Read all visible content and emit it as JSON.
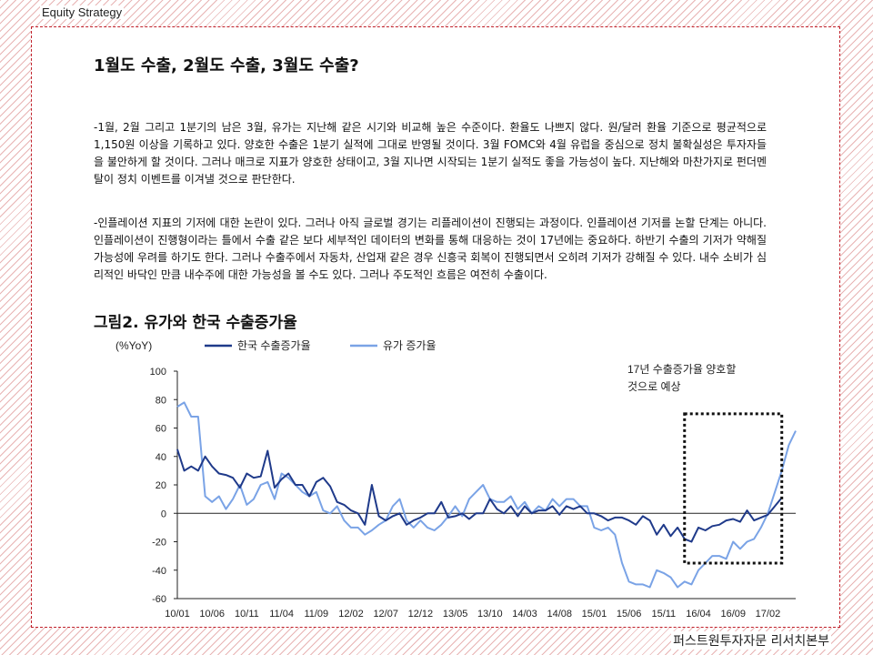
{
  "header": {
    "label": "Equity Strategy"
  },
  "footer": {
    "label": "퍼스트원투자자문 리서치본부"
  },
  "document": {
    "title": "1월도 수출, 2월도 수출, 3월도 수출?",
    "paragraphs": [
      "-1월, 2월 그리고 1분기의 남은 3월, 유가는 지난해 같은 시기와 비교해 높은 수준이다. 환율도 나쁘지 않다. 원/달러 환율 기준으로 평균적으로 1,150원 이상을 기록하고 있다. 양호한 수출은 1분기 실적에 그대로 반영될 것이다. 3월 FOMC와 4월 유럽을 중심으로 정치 불확실성은 투자자들을 불안하게 할 것이다. 그러나 매크로 지표가 양호한 상태이고, 3월 지나면 시작되는 1분기 실적도 좋을 가능성이 높다. 지난해와 마찬가지로 펀더멘탈이 정치 이벤트를 이겨낼 것으로 판단한다.",
      "-인플레이션 지표의 기저에 대한 논란이 있다. 그러나 아직 글로벌 경기는 리플레이션이 진행되는 과정이다. 인플레이션 기저를 논할 단계는 아니다. 인플레이션이 진행형이라는 틀에서 수출 같은 보다 세부적인 데이터의 변화를 통해 대응하는 것이 17년에는 중요하다. 하반기 수출의 기저가 약해질 가능성에 우려를 하기도 한다. 그러나 수출주에서 자동차, 산업재 같은 경우 신흥국 회복이 진행되면서 오히려 기저가 강해질 수 있다. 내수 소비가 심리적인 바닥인 만큼 내수주에 대한 가능성을 볼 수도 있다. 그러나 주도적인 흐름은 여전히 수출이다."
    ],
    "figure_title": "그림2. 유가와 한국 수출증가율"
  },
  "chart_data": {
    "type": "line",
    "ylabel": "(%YoY)",
    "ylim": [
      -60,
      100
    ],
    "yticks": [
      100,
      80,
      60,
      40,
      20,
      0,
      -20,
      -40,
      -60
    ],
    "xlabels": [
      "10/01",
      "10/06",
      "10/11",
      "11/04",
      "11/09",
      "12/02",
      "12/07",
      "12/12",
      "13/05",
      "13/10",
      "14/03",
      "14/08",
      "15/01",
      "15/06",
      "15/11",
      "16/04",
      "16/09",
      "17/02"
    ],
    "annotation": {
      "text_lines": [
        "17년 수출증가율 양호할",
        "것으로 예상"
      ],
      "box_from_month_index": 73,
      "box_to_month_index": 87,
      "box_y": [
        -35,
        70
      ]
    },
    "series": [
      {
        "name": "한국 수출증가율",
        "color": "#1f3a8a",
        "values": [
          45,
          30,
          33,
          30,
          40,
          33,
          28,
          27,
          25,
          18,
          28,
          25,
          26,
          44,
          18,
          24,
          28,
          20,
          20,
          12,
          22,
          25,
          19,
          8,
          6,
          2,
          0,
          -8,
          20,
          -2,
          -5,
          -2,
          0,
          -8,
          -5,
          -3,
          0,
          0,
          8,
          -3,
          -2,
          0,
          -4,
          0,
          0,
          10,
          3,
          0,
          5,
          -2,
          5,
          0,
          2,
          2,
          5,
          -1,
          5,
          3,
          5,
          0,
          0,
          -2,
          -5,
          -3,
          -3,
          -5,
          -8,
          -2,
          -5,
          -15,
          -8,
          -16,
          -10,
          -18,
          -20,
          -10,
          -12,
          -9,
          -8,
          -5,
          -4,
          -6,
          2,
          -5,
          -3,
          -1,
          5,
          11
        ],
        "offset": 0
      },
      {
        "name": "유가 증가율",
        "color": "#7aa3e6",
        "values": [
          75,
          78,
          68,
          68,
          12,
          8,
          12,
          3,
          10,
          20,
          6,
          10,
          20,
          22,
          10,
          28,
          25,
          20,
          15,
          12,
          15,
          2,
          0,
          5,
          -5,
          -10,
          -10,
          -15,
          -12,
          -8,
          -5,
          5,
          10,
          -5,
          -10,
          -5,
          -10,
          -12,
          -8,
          -2,
          5,
          -2,
          10,
          15,
          20,
          10,
          8,
          8,
          12,
          3,
          8,
          0,
          5,
          2,
          10,
          5,
          10,
          10,
          5,
          5,
          -10,
          -12,
          -10,
          -15,
          -35,
          -48,
          -50,
          -50,
          -52,
          -40,
          -42,
          -45,
          -52,
          -48,
          -50,
          -40,
          -35,
          -30,
          -30,
          -32,
          -20,
          -25,
          -20,
          -18,
          -10,
          0,
          15,
          30,
          48,
          58
        ],
        "offset": 0
      }
    ]
  }
}
